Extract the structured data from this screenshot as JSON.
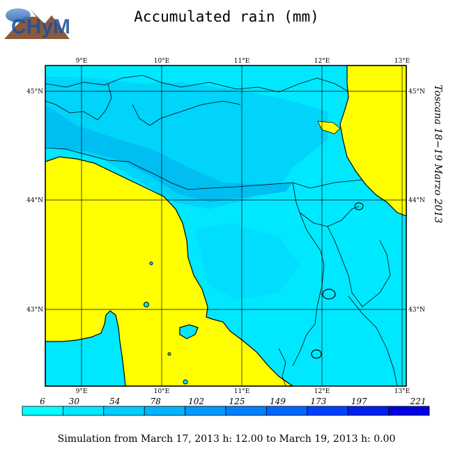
{
  "header": {
    "title": "Accumulated rain (mm)",
    "logo_text": "CHyM"
  },
  "map": {
    "region_label": "Toscana 18−19 Marzo 2013",
    "lon_ticks_top": [
      "9°E",
      "10°E",
      "11°E",
      "12°E",
      "13°E"
    ],
    "lon_ticks_bottom": [
      "9°E",
      "10°E",
      "11°E",
      "12°E",
      "13°E"
    ],
    "lat_ticks_left": [
      "45°N",
      "44°N",
      "43°N"
    ],
    "lat_ticks_right": [
      "45°N",
      "44°N",
      "43°N"
    ],
    "colors": {
      "sea": "#ffff00",
      "land_base": "#00e8ff",
      "rain_heavy": "#00b8f0",
      "rain_medium": "#00d4fa",
      "coast": "#000000"
    }
  },
  "legend": {
    "values": [
      "6",
      "30",
      "54",
      "78",
      "102",
      "125",
      "149",
      "173",
      "197",
      "221"
    ],
    "colors": [
      "#00ffff",
      "#00e6ff",
      "#00ccff",
      "#00b3ff",
      "#0099ff",
      "#0080ff",
      "#0066ff",
      "#0040ff",
      "#0020f0",
      "#0000e0"
    ]
  },
  "footer": {
    "text": "Simulation from March 17, 2013 h: 12.00 to March 19, 2013 h: 0.00"
  }
}
